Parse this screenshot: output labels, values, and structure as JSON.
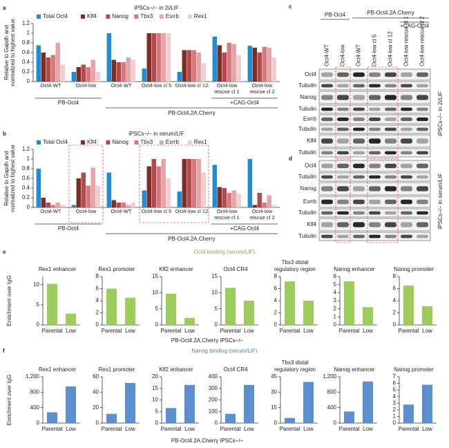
{
  "chart_data": [
    {
      "type": "grouped-bar",
      "panel": "a",
      "title": "iPSCs−/− in 2i/LIF",
      "y_label": [
        "Relative to Gapdh and",
        "normalized to highest value"
      ],
      "categories": [
        "Oct4-WT",
        "Oct4-low",
        "Oct4-WT",
        "Oct4-low cl 5",
        "Oct4-low cl 12",
        "Oct4-low rescue cl 1",
        "Oct4-low rescue cl 2"
      ],
      "series": [
        {
          "name": "Total Oct4",
          "color": "#1f8dd6",
          "values": [
            0.75,
            0.2,
            1.0,
            0.27,
            0.2,
            0.93,
            0.74
          ]
        },
        {
          "name": "Klf4",
          "color": "#7b2d26",
          "values": [
            0.6,
            0.3,
            0.45,
            1.0,
            0.65,
            0.75,
            0.7
          ]
        },
        {
          "name": "Nanog",
          "color": "#b5484a",
          "values": [
            0.5,
            0.35,
            0.4,
            1.0,
            0.65,
            0.6,
            0.6
          ]
        },
        {
          "name": "Tbx3",
          "color": "#d9787a",
          "values": [
            0.55,
            0.3,
            0.4,
            1.0,
            0.65,
            0.8,
            0.72
          ]
        },
        {
          "name": "Esrrb",
          "color": "#e8a4a4",
          "values": [
            0.8,
            0.45,
            0.5,
            1.0,
            0.6,
            0.78,
            0.7
          ]
        },
        {
          "name": "Rex1",
          "color": "#f4cccc",
          "values": [
            0.35,
            0.2,
            0.45,
            1.0,
            0.38,
            0.55,
            0.5
          ]
        }
      ],
      "ylim": [
        0,
        1.2
      ],
      "yticks": [
        0,
        0.2,
        0.4,
        0.6,
        0.8,
        1,
        1.2
      ],
      "group_labels": [
        "PB-Oct4",
        "+CAG-Oct4",
        "PB-Oct4.2A.Cherry"
      ]
    },
    {
      "type": "grouped-bar",
      "panel": "b",
      "title": "iPSCs−/− in serum/LIF",
      "y_label": [
        "Relative to Gapdh and",
        "normalized to highest value"
      ],
      "categories": [
        "Oct4-WT",
        "Oct4-low",
        "Oct4-WT",
        "Oct4-low cl 5",
        "Oct4-low cl 12",
        "Oct4-low rescue cl 1",
        "Oct4-low rescue cl 2"
      ],
      "series": [
        {
          "name": "Total Oct4",
          "color": "#1f8dd6",
          "values": [
            0.8,
            0.05,
            0.72,
            0.35,
            0.33,
            0.88,
            1.0
          ]
        },
        {
          "name": "Klf4",
          "color": "#7b2d26",
          "values": [
            0.2,
            0.6,
            0.15,
            0.85,
            1.0,
            0.42,
            0.05
          ]
        },
        {
          "name": "Nanog",
          "color": "#b5484a",
          "values": [
            0.1,
            0.72,
            0.1,
            1.0,
            1.0,
            0.4,
            0.3
          ]
        },
        {
          "name": "Tbx3",
          "color": "#d9787a",
          "values": [
            0.05,
            0.45,
            0.1,
            0.85,
            1.0,
            0.3,
            0.1
          ]
        },
        {
          "name": "Esrrb",
          "color": "#e8a4a4",
          "values": [
            0.1,
            0.82,
            0.05,
            1.0,
            1.0,
            0.35,
            0.25
          ]
        },
        {
          "name": "Rex1",
          "color": "#f4cccc",
          "values": [
            0.05,
            0.45,
            0.1,
            0.6,
            0.72,
            0.28,
            0.05
          ]
        }
      ],
      "ylim": [
        0,
        1.2
      ],
      "yticks": [
        0,
        0.2,
        0.4,
        0.6,
        0.8,
        1,
        1.2
      ],
      "group_labels": [
        "PB-Oct4",
        "+CAG-Oct4",
        "PB-Oct4.2A.Cherry"
      ]
    },
    {
      "type": "bar",
      "title": "Rex1 enhancer",
      "categories": [
        "Parental",
        "Low"
      ],
      "values": [
        10.2,
        2.8
      ],
      "color": "#9ccc5b",
      "ylim": [
        0,
        12
      ],
      "yticks": [
        0,
        5,
        10
      ]
    },
    {
      "type": "bar",
      "title": "Rex1 promoter",
      "categories": [
        "Parental",
        "Low"
      ],
      "values": [
        6,
        4.5
      ],
      "color": "#9ccc5b",
      "ylim": [
        0,
        8
      ],
      "yticks": [
        0,
        2,
        4,
        6,
        8
      ]
    },
    {
      "type": "bar",
      "title": "Klf2 enhancer",
      "categories": [
        "Parental",
        "Low"
      ],
      "values": [
        9.7,
        2.2
      ],
      "color": "#9ccc5b",
      "ylim": [
        0,
        15
      ],
      "yticks": [
        0,
        5,
        10,
        15
      ]
    },
    {
      "type": "bar",
      "title": "Oct4 CR4",
      "categories": [
        "Parental",
        "Low"
      ],
      "values": [
        11.5,
        7.5
      ],
      "color": "#9ccc5b",
      "ylim": [
        0,
        15
      ],
      "yticks": [
        0,
        5,
        10,
        15
      ]
    },
    {
      "type": "bar",
      "title": [
        "Tbx3 distal",
        "regulatory region"
      ],
      "categories": [
        "Parental",
        "Low"
      ],
      "values": [
        7.2,
        4
      ],
      "color": "#9ccc5b",
      "ylim": [
        0,
        8
      ],
      "yticks": [
        0,
        2,
        4,
        6,
        8
      ]
    },
    {
      "type": "bar",
      "title": "Nanog enhancer",
      "categories": [
        "Parental",
        "Low"
      ],
      "values": [
        5.4,
        2.2
      ],
      "color": "#9ccc5b",
      "ylim": [
        0,
        6
      ],
      "yticks": [
        0,
        1,
        2,
        3,
        4,
        5,
        6
      ]
    },
    {
      "type": "bar",
      "title": "Nanog promoter",
      "categories": [
        "Parental",
        "Low"
      ],
      "values": [
        6.5,
        3.1
      ],
      "color": "#9ccc5b",
      "ylim": [
        0,
        8
      ],
      "yticks": [
        0,
        2,
        4,
        6,
        8
      ]
    },
    {
      "type": "bar",
      "title": "Rex1 enhancer",
      "categories": [
        "Parental",
        "Low"
      ],
      "values": [
        280,
        950
      ],
      "color": "#5b8fd0",
      "ylim": [
        0,
        1200
      ],
      "yticks": [
        0,
        400,
        800,
        {
          "value": 1200,
          "label": "1,200"
        }
      ]
    },
    {
      "type": "bar",
      "title": "Rex1 promoter",
      "categories": [
        "Parental",
        "Low"
      ],
      "values": [
        12,
        52
      ],
      "color": "#5b8fd0",
      "ylim": [
        0,
        60
      ],
      "yticks": [
        0,
        20,
        40,
        60
      ]
    },
    {
      "type": "bar",
      "title": "Klf2 enhancer",
      "categories": [
        "Parental",
        "Low"
      ],
      "values": [
        6.5,
        16.5
      ],
      "color": "#5b8fd0",
      "ylim": [
        0,
        20
      ],
      "yticks": [
        0,
        5,
        10,
        15,
        20
      ]
    },
    {
      "type": "bar",
      "title": "Oct4 CR4",
      "categories": [
        "Parental",
        "Low"
      ],
      "values": [
        80,
        330
      ],
      "color": "#5b8fd0",
      "ylim": [
        0,
        400
      ],
      "yticks": [
        0,
        100,
        200,
        300,
        400
      ]
    },
    {
      "type": "bar",
      "title": [
        "Tbx3 distal",
        "regulatory region"
      ],
      "categories": [
        "Parental",
        "Low"
      ],
      "values": [
        5,
        40
      ],
      "color": "#5b8fd0",
      "ylim": [
        0,
        45
      ],
      "yticks": [
        0,
        15,
        30,
        45
      ]
    },
    {
      "type": "bar",
      "title": "Nanog enhancer",
      "categories": [
        "Parental",
        "Low"
      ],
      "values": [
        300,
        1080
      ],
      "color": "#5b8fd0",
      "ylim": [
        0,
        1200
      ],
      "yticks": [
        0,
        400,
        800,
        {
          "value": 1200,
          "label": "1,200"
        }
      ]
    },
    {
      "type": "bar",
      "title": "Nanog promoter",
      "categories": [
        "Parental",
        "Low"
      ],
      "values": [
        2.8,
        5.8
      ],
      "color": "#5b8fd0",
      "ylim": [
        0,
        7
      ],
      "yticks": [
        0,
        1,
        2,
        3,
        4,
        5,
        6,
        7
      ]
    }
  ],
  "panels": {
    "e": {
      "label": "e",
      "title": "Oct4 binding (serum/LIF)",
      "y_label": "Enrichment over IgG",
      "x_label": "PB-Oct4.2A.Cherry iPSCs−/−"
    },
    "f": {
      "label": "f",
      "title": "Nanog binding (serum/LIF)",
      "y_label": "Enrichment over IgG",
      "x_label": "PB-Oct4.2A.Cherry iPSCs−/−"
    }
  },
  "blots": {
    "c": {
      "label": "c",
      "headers": [
        "PB-Oct4",
        "PB-Oct4.2A.Cherry",
        "+CAG-Oct4"
      ],
      "columns": [
        "Oct4-WT",
        "Oct4-low",
        "Oct4-WT",
        "Oct4-low cl 5",
        "Oct4-low cl 12",
        "Oct4-low rescue cl 1",
        "Oct4-low rescue cl 2"
      ],
      "rows": [
        "Oct4",
        "Tubulin",
        "Nanog",
        "Tubulin",
        "Esrrb",
        "Tubulin",
        "Klf4",
        "Tubulin"
      ],
      "side_label": "iPSCs−/− in 2i/LIF"
    },
    "d": {
      "label": "d",
      "rows": [
        "Oct4",
        "Tubulin",
        "Nanog",
        "Esrrb",
        "Tubulin",
        "Klf4",
        "Tubulin"
      ],
      "side_label": "iPSCs−/− in serum/LIF"
    }
  }
}
